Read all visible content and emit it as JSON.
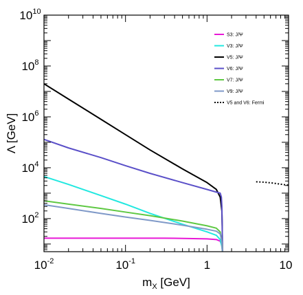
{
  "chart_data": {
    "type": "line",
    "xlabel_main": "m",
    "xlabel_sub": "X",
    "xlabel_unit": " [GeV]",
    "ylabel": "Λ [GeV]",
    "xscale": "log",
    "yscale": "log",
    "xlim": [
      0.01,
      10
    ],
    "ylim": [
      5,
      10000000000
    ],
    "grid": false,
    "legend_position": "top-right",
    "x_ticks": [
      {
        "value": 0.01,
        "base": "10",
        "exp": "-2"
      },
      {
        "value": 0.1,
        "base": "10",
        "exp": "-1"
      },
      {
        "value": 1,
        "base": "1",
        "exp": ""
      },
      {
        "value": 10,
        "base": "10",
        "exp": ""
      }
    ],
    "y_ticks": [
      {
        "value": 100,
        "base": "10",
        "exp": "2"
      },
      {
        "value": 10000,
        "base": "10",
        "exp": "4"
      },
      {
        "value": 1000000,
        "base": "10",
        "exp": "6"
      },
      {
        "value": 100000000,
        "base": "10",
        "exp": "8"
      },
      {
        "value": 10000000000,
        "base": "10",
        "exp": "10"
      }
    ],
    "series": [
      {
        "name": "S3: J/Ψ",
        "color": "#e817d6",
        "dash": "solid",
        "x": [
          0.01,
          0.03,
          0.1,
          0.3,
          0.6,
          1.0,
          1.3,
          1.45,
          1.5,
          1.53,
          1.545
        ],
        "y": [
          17,
          17,
          17,
          17,
          16.5,
          16,
          15,
          13,
          10,
          7,
          5
        ]
      },
      {
        "name": "V3: J/Ψ",
        "color": "#22e8e0",
        "dash": "solid",
        "x": [
          0.01,
          0.02,
          0.05,
          0.1,
          0.2,
          0.5,
          1.0,
          1.3,
          1.45,
          1.52,
          1.545
        ],
        "y": [
          4500,
          2200,
          800,
          370,
          160,
          60,
          30,
          22,
          15,
          8,
          5
        ]
      },
      {
        "name": "V5: J/Ψ",
        "color": "#000000",
        "dash": "solid",
        "x": [
          0.01,
          0.02,
          0.05,
          0.1,
          0.2,
          0.5,
          1.0,
          1.3,
          1.45,
          1.52,
          1.535,
          1.545
        ],
        "y": [
          20000000,
          5000000,
          800000,
          200000,
          50000,
          9000,
          2600,
          1400,
          700,
          200,
          50,
          5
        ]
      },
      {
        "name": "V6: J/Ψ",
        "color": "#5a4fc8",
        "dash": "solid",
        "x": [
          0.01,
          0.02,
          0.05,
          0.1,
          0.2,
          0.5,
          1.0,
          1.3,
          1.45,
          1.5,
          1.52,
          1.535,
          1.545
        ],
        "y": [
          130000,
          60000,
          25000,
          12000,
          6000,
          2600,
          1400,
          1100,
          1000,
          700,
          300,
          50,
          5
        ]
      },
      {
        "name": "V7: J/Ψ",
        "color": "#5ec842",
        "dash": "solid",
        "x": [
          0.01,
          0.02,
          0.05,
          0.1,
          0.2,
          0.5,
          1.0,
          1.3,
          1.45,
          1.52,
          1.545
        ],
        "y": [
          500,
          370,
          250,
          180,
          130,
          80,
          52,
          42,
          30,
          12,
          5
        ]
      },
      {
        "name": "V9: J/Ψ",
        "color": "#7f99c8",
        "dash": "solid",
        "x": [
          0.01,
          0.02,
          0.05,
          0.1,
          0.2,
          0.5,
          1.0,
          1.3,
          1.45,
          1.52,
          1.545
        ],
        "y": [
          350,
          250,
          160,
          115,
          85,
          55,
          38,
          32,
          25,
          12,
          5
        ]
      },
      {
        "name": "V5 and V6: Fermi",
        "color": "#000000",
        "dash": "dotted",
        "x": [
          4,
          5,
          6,
          7,
          8,
          10
        ],
        "y": [
          2800,
          2700,
          2550,
          2400,
          2250,
          2050
        ]
      }
    ]
  }
}
